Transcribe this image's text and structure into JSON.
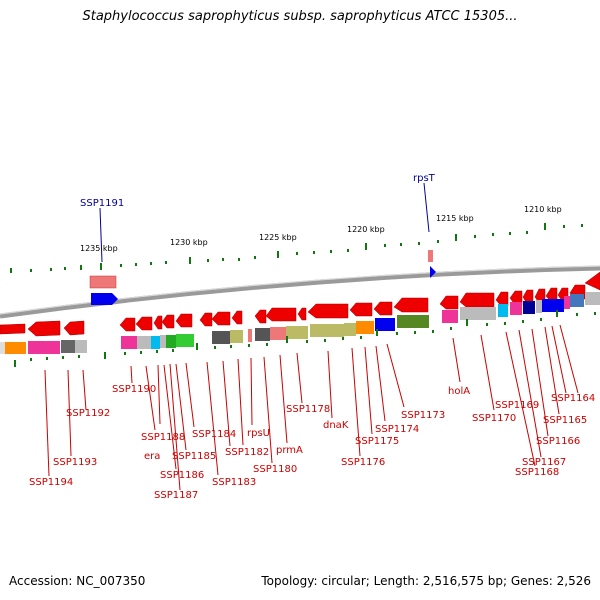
{
  "title": "Staphylococcus saprophyticus subsp. saprophyticus ATCC 15305...",
  "footer": {
    "accession": "Accession: NC_007350",
    "summary": "Topology: circular; Length: 2,516,575 bp; Genes: 2,526"
  },
  "scale_labels": [
    "1235 kbp",
    "1230 kbp",
    "1225 kbp",
    "1220 kbp",
    "1215 kbp",
    "1210 kbp"
  ],
  "top_gene_labels": [
    "SSP1191",
    "rpsT"
  ],
  "gene_labels": [
    "SSP1194",
    "SSP1193",
    "SSP1192",
    "SSP1190",
    "SSP1188",
    "era",
    "SSP1186",
    "SSP1187",
    "SSP1185",
    "SSP1184",
    "SSP1183",
    "SSP1182",
    "rpsU",
    "SSP1180",
    "prmA",
    "SSP1178",
    "dnaK",
    "SSP1176",
    "SSP1175",
    "SSP1174",
    "SSP1173",
    "holA",
    "SSP1170",
    "SSP1169",
    "SSP1168",
    "SSP1167",
    "SSP1166",
    "SSP1165",
    "SSP1164"
  ],
  "colors": {
    "forward_gene": "#ff0000",
    "reverse_gene": "#ff0000",
    "label_red": "#cc0000",
    "label_blue": "#000099",
    "tick_green": "#006600",
    "backbone": "#888888"
  }
}
